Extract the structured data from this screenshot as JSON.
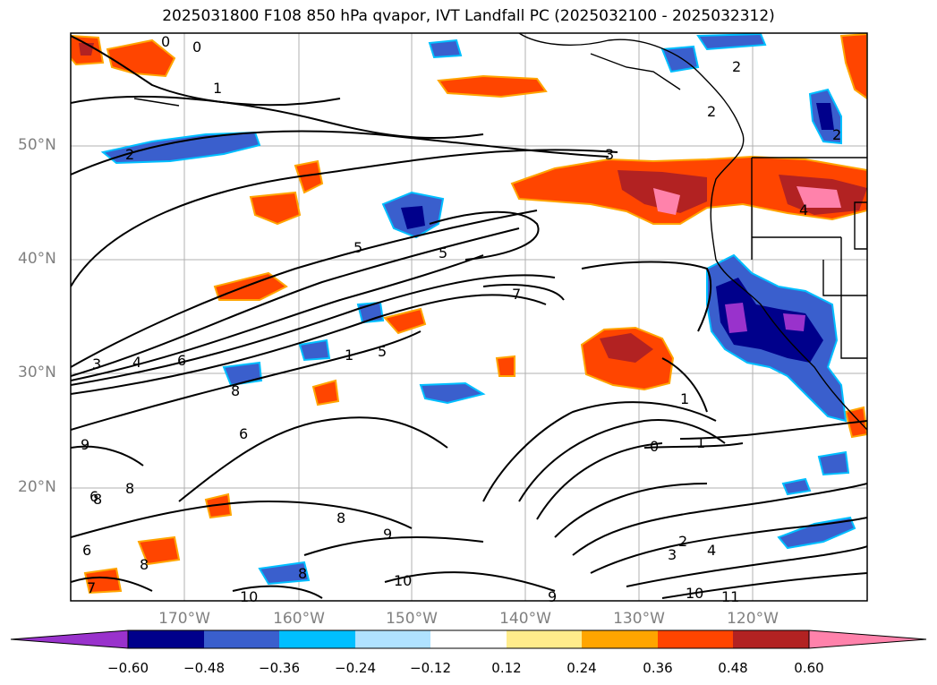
{
  "title": "2025031800 F108 850 hPa qvapor, IVT Landfall PC (2025032100 - 2025032312)",
  "map": {
    "lat_labels": [
      "50°N",
      "40°N",
      "30°N",
      "20°N"
    ],
    "lon_labels": [
      "170°W",
      "160°W",
      "150°W",
      "140°W",
      "130°W",
      "120°W"
    ],
    "contour_labels": [
      "0",
      "0",
      "1",
      "2",
      "2",
      "2",
      "2",
      "3",
      "5",
      "5",
      "7",
      "3",
      "4",
      "6",
      "8",
      "5",
      "1",
      "6",
      "9",
      "8",
      "8",
      "8",
      "1",
      "0",
      "1",
      "2",
      "3",
      "4",
      "6",
      "7",
      "8",
      "9",
      "9",
      "10",
      "10",
      "10",
      "11",
      "4",
      "8",
      "6"
    ],
    "gridlines": true,
    "coastlines": true
  },
  "colorbar": {
    "ticks": [
      "−0.60",
      "−0.48",
      "−0.36",
      "−0.24",
      "−0.12",
      "0.12",
      "0.24",
      "0.36",
      "0.48",
      "0.60"
    ],
    "colors": [
      "#9932CC",
      "#00008B",
      "#3A5FCD",
      "#00BFFF",
      "#B0E2FF",
      "#FFFFFF",
      "#FFEC8B",
      "#FFA500",
      "#FF4500",
      "#B22222",
      "#FF82AB"
    ]
  }
}
